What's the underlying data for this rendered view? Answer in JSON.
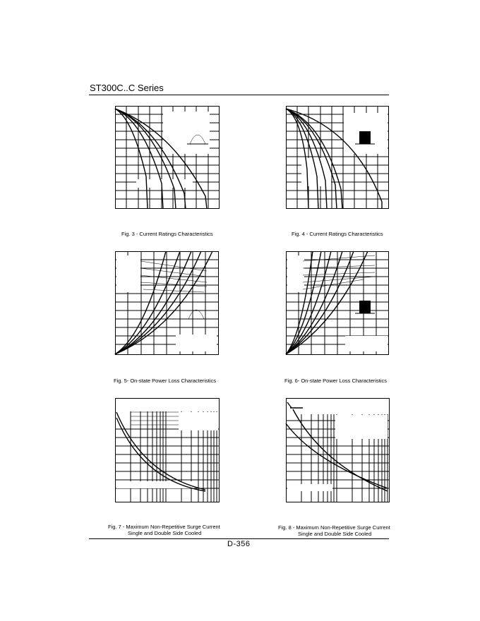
{
  "header": {
    "series_title": "ST300C..C Series"
  },
  "footer": {
    "page_number": "D-356"
  },
  "figures": [
    {
      "caption": "Fig. 3 - Current Ratings Characteristics"
    },
    {
      "caption": "Fig. 4 - Current Ratings Characteristics"
    },
    {
      "caption": "Fig. 5- On-state Power Loss Characteristics"
    },
    {
      "caption": "Fig. 6- On-state Power Loss Characteristics"
    },
    {
      "caption_line1": "Fig. 7 - Maximum Non-Repetitive Surge Current",
      "caption_line2": "Single and Double Side Cooled"
    },
    {
      "caption_line1": "Fig. 8 - Maximum Non-Repetitive Surge Current",
      "caption_line2": "Single and Double Side Cooled"
    }
  ]
}
